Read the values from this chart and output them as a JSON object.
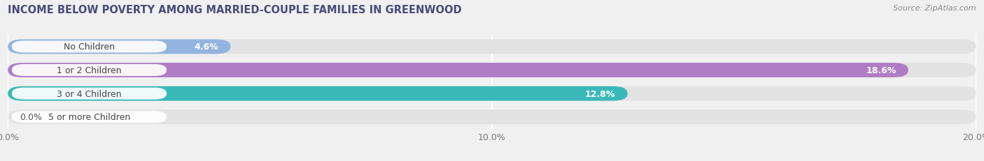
{
  "title": "INCOME BELOW POVERTY AMONG MARRIED-COUPLE FAMILIES IN GREENWOOD",
  "source": "Source: ZipAtlas.com",
  "categories": [
    "No Children",
    "1 or 2 Children",
    "3 or 4 Children",
    "5 or more Children"
  ],
  "values": [
    4.6,
    18.6,
    12.8,
    0.0
  ],
  "bar_colors": [
    "#92b4de",
    "#b07cc6",
    "#3ab8b8",
    "#aab4e8"
  ],
  "xlim": [
    0,
    20.0
  ],
  "xticks": [
    0.0,
    10.0,
    20.0
  ],
  "xtick_labels": [
    "0.0%",
    "10.0%",
    "20.0%"
  ],
  "background_color": "#f0f0f0",
  "bar_bg_color": "#e2e2e2",
  "title_color": "#4a4a7a",
  "source_color": "#888888",
  "title_fontsize": 10.5,
  "source_fontsize": 8,
  "cat_label_fontsize": 9,
  "val_label_fontsize": 9,
  "tick_fontsize": 9,
  "bar_height": 0.62,
  "bar_rounding": 0.31
}
